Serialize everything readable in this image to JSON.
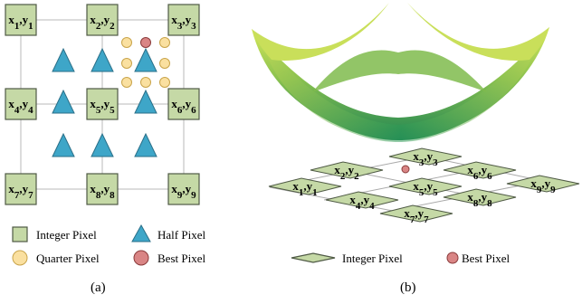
{
  "panel_a": {
    "integer_pixels": [
      {
        "x": "x",
        "xs": "1",
        "y": "y",
        "ys": "1"
      },
      {
        "x": "x",
        "xs": "2",
        "y": "y",
        "ys": "2"
      },
      {
        "x": "x",
        "xs": "3",
        "y": "y",
        "ys": "3"
      },
      {
        "x": "x",
        "xs": "4",
        "y": "y",
        "ys": "4"
      },
      {
        "x": "x",
        "xs": "5",
        "y": "y",
        "ys": "5"
      },
      {
        "x": "x",
        "xs": "6",
        "y": "y",
        "ys": "6"
      },
      {
        "x": "x",
        "xs": "7",
        "y": "y",
        "ys": "7"
      },
      {
        "x": "x",
        "xs": "8",
        "y": "y",
        "ys": "8"
      },
      {
        "x": "x",
        "xs": "9",
        "y": "y",
        "ys": "9"
      }
    ],
    "legend": {
      "integer": "Integer Pixel",
      "half": "Half Pixel",
      "quarter": "Quarter Pixel",
      "best": "Best Pixel"
    },
    "caption": "(a)"
  },
  "panel_b": {
    "integer_pixels": [
      {
        "x": "x",
        "xs": "1",
        "y": "y",
        "ys": "1"
      },
      {
        "x": "x",
        "xs": "2",
        "y": "y",
        "ys": "2"
      },
      {
        "x": "x",
        "xs": "3",
        "y": "y",
        "ys": "3"
      },
      {
        "x": "x",
        "xs": "4",
        "y": "y",
        "ys": "4"
      },
      {
        "x": "x",
        "xs": "5",
        "y": "y",
        "ys": "5"
      },
      {
        "x": "x",
        "xs": "6",
        "y": "y",
        "ys": "6"
      },
      {
        "x": "x",
        "xs": "7",
        "y": "y",
        "ys": "7"
      },
      {
        "x": "x",
        "xs": "8",
        "y": "y",
        "ys": "8"
      },
      {
        "x": "x",
        "xs": "9",
        "y": "y",
        "ys": "9"
      }
    ],
    "legend": {
      "integer": "Integer Pixel",
      "best": "Best Pixel"
    },
    "caption": "(b)"
  },
  "colors": {
    "integer_fill": "#c5d9a6",
    "integer_stroke": "#4f5a45",
    "half_fill": "#3ea6c8",
    "half_stroke": "#2a6f88",
    "quarter_fill": "#fae0a0",
    "quarter_stroke": "#c9a44a",
    "best_fill": "#d98585",
    "best_stroke": "#8a3b3b",
    "surface_light": "#c8df58",
    "surface_dark": "#1d8a55"
  }
}
